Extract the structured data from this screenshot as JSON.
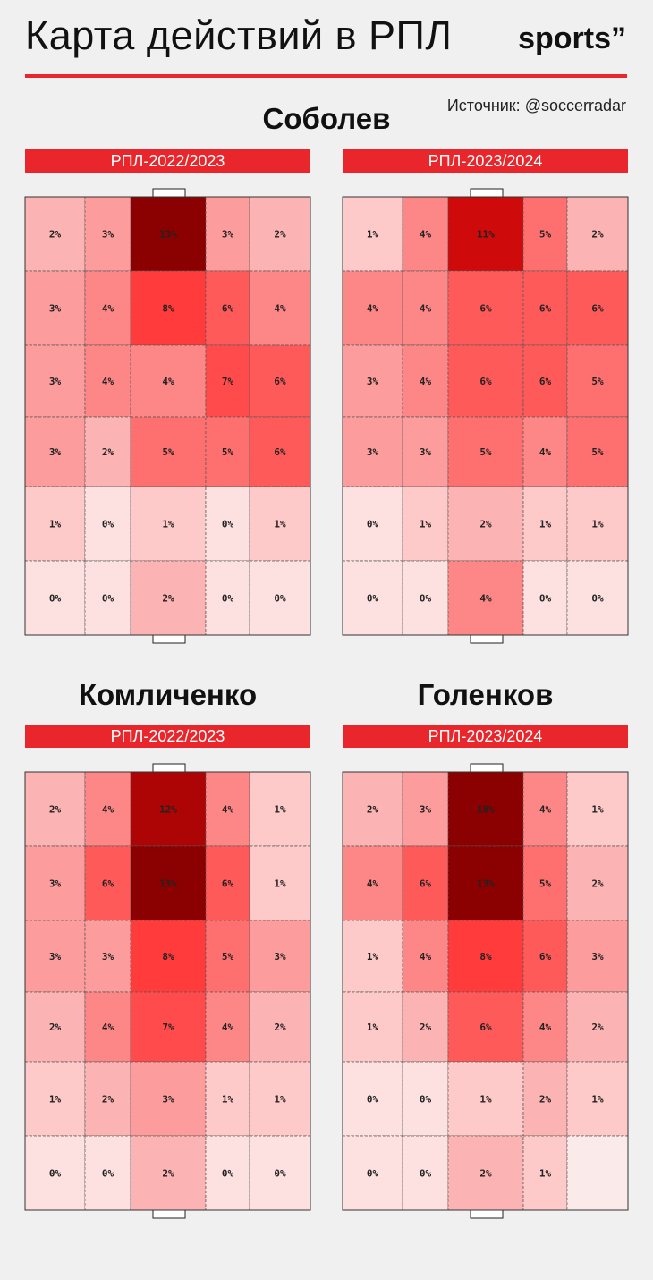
{
  "header": {
    "title": "Карта действий в РПЛ",
    "brand": "sports”",
    "source": "Источник: @soccerradar"
  },
  "colors": {
    "accent": "#e8262b",
    "background": "#f0f0f0",
    "heat_low": "#fde8e8",
    "heat_high": "#8b0000"
  },
  "players": [
    {
      "name": "Соболев"
    },
    {
      "name": "Комличенко"
    },
    {
      "name": "Голенков"
    }
  ],
  "chart_data": [
    {
      "type": "heatmap",
      "player": "Соболев",
      "title": "РПЛ-2022/2023",
      "values": [
        [
          2,
          3,
          13,
          3,
          2
        ],
        [
          3,
          4,
          8,
          6,
          4
        ],
        [
          3,
          4,
          4,
          7,
          6
        ],
        [
          3,
          2,
          5,
          5,
          6
        ],
        [
          1,
          0,
          1,
          0,
          1
        ],
        [
          0,
          0,
          2,
          0,
          0
        ]
      ]
    },
    {
      "type": "heatmap",
      "player": "Соболев",
      "title": "РПЛ-2023/2024",
      "values": [
        [
          1,
          4,
          11,
          5,
          2
        ],
        [
          4,
          4,
          6,
          6,
          6
        ],
        [
          3,
          4,
          6,
          6,
          5
        ],
        [
          3,
          3,
          5,
          4,
          5
        ],
        [
          0,
          1,
          2,
          1,
          1
        ],
        [
          0,
          0,
          4,
          0,
          0
        ]
      ]
    },
    {
      "type": "heatmap",
      "player": "Комличенко",
      "title": "РПЛ-2022/2023",
      "values": [
        [
          2,
          4,
          12,
          4,
          1
        ],
        [
          3,
          6,
          13,
          6,
          1
        ],
        [
          3,
          3,
          8,
          5,
          3
        ],
        [
          2,
          4,
          7,
          4,
          2
        ],
        [
          1,
          2,
          3,
          1,
          1
        ],
        [
          0,
          0,
          2,
          0,
          0
        ]
      ]
    },
    {
      "type": "heatmap",
      "player": "Голенков",
      "title": "РПЛ-2023/2024",
      "values": [
        [
          2,
          3,
          18,
          4,
          1
        ],
        [
          4,
          6,
          13,
          5,
          2
        ],
        [
          1,
          4,
          8,
          6,
          3
        ],
        [
          1,
          2,
          6,
          4,
          2
        ],
        [
          0,
          0,
          1,
          2,
          1
        ],
        [
          0,
          0,
          2,
          1,
          null
        ]
      ]
    }
  ]
}
